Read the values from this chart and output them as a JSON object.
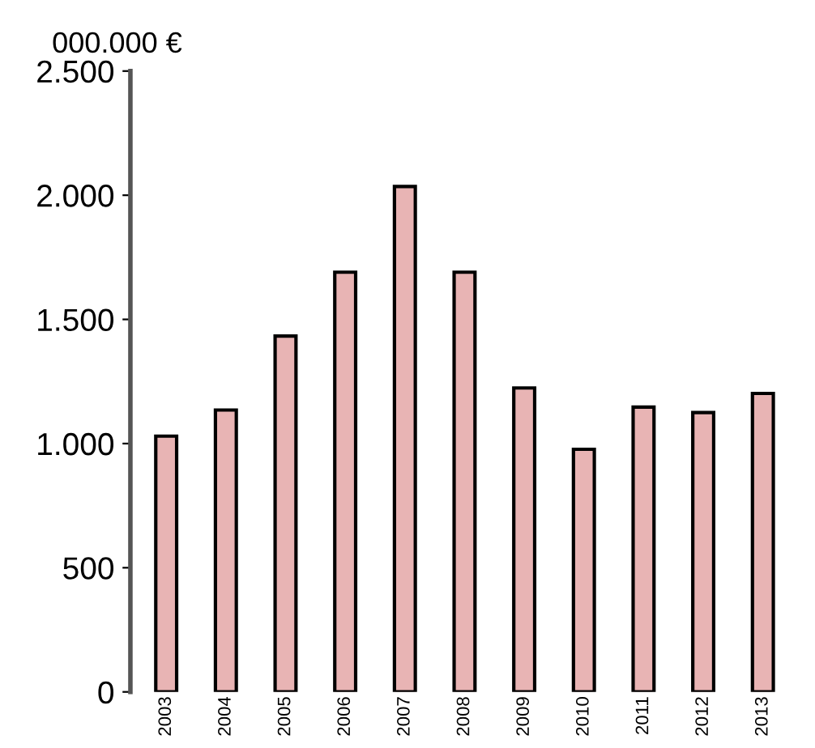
{
  "chart_data": {
    "type": "bar",
    "ylabel": "000.000 €",
    "categories": [
      "2003",
      "2004",
      "2005",
      "2006",
      "2007",
      "2008",
      "2009",
      "2010",
      "2011",
      "2012",
      "2013"
    ],
    "values": [
      1030,
      1135,
      1433,
      1690,
      2035,
      1690,
      1224,
      977,
      1147,
      1125,
      1202
    ],
    "color": "#e8b4b4",
    "ylim": [
      0,
      2500
    ],
    "yticks": [
      0,
      500,
      {
        "value": 1000,
        "label": "1.000"
      },
      {
        "value": 1500,
        "label": "1.500"
      },
      {
        "value": 2000,
        "label": "2.000"
      },
      {
        "value": 2500,
        "label": "2.500"
      }
    ],
    "grid": false
  }
}
